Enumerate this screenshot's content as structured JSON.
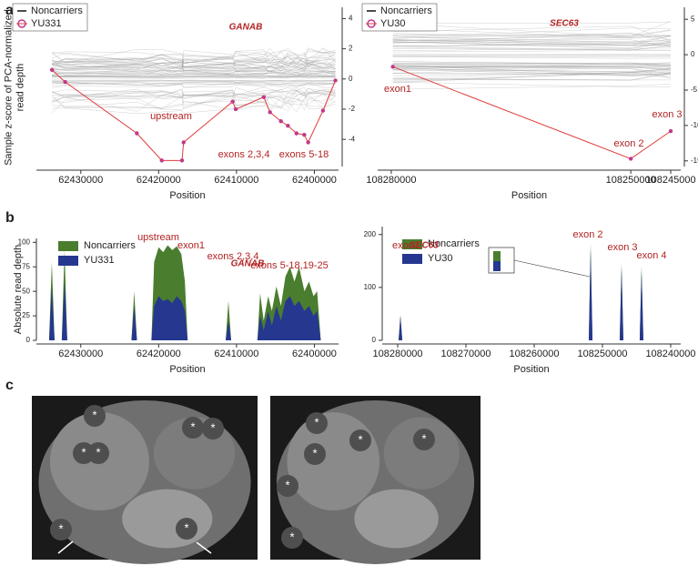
{
  "panel_labels": [
    "a",
    "b",
    "c"
  ],
  "chart_data": [
    {
      "type": "line",
      "y_label": "Sample z-score of PCA-normalized read depth",
      "x_label": "Position",
      "annotations": [
        "GANAB",
        "upstream",
        "exons 2,3,4",
        "exons 5-18"
      ],
      "legend": "upper left",
      "y_axis_side": "right",
      "xlim": [
        62435700,
        62396900
      ],
      "xticks": [
        62430000,
        62420000,
        62410000,
        62400000
      ],
      "ylim": [
        -5.8,
        4.75
      ],
      "yticks": [
        4,
        2,
        0,
        -2,
        -4
      ],
      "series": [
        {
          "name": "Noncarriers",
          "color": "#9e9e9e"
        },
        {
          "name": "YU331",
          "color": "#c0398a",
          "line_color": "#e03c3c",
          "x": [
            62433700,
            62432000,
            62422800,
            62419600,
            62417000,
            62416800,
            62410500,
            62410100,
            62406500,
            62405700,
            62404300,
            62403400,
            62402300,
            62401300,
            62400800,
            62398900,
            62397300
          ],
          "values": [
            0.6,
            -0.2,
            -3.6,
            -5.4,
            -5.4,
            -4.2,
            -1.5,
            -2.0,
            -1.2,
            -2.2,
            -2.8,
            -3.1,
            -3.6,
            -3.7,
            -4.2,
            -2.1,
            -0.1
          ]
        }
      ]
    },
    {
      "type": "line",
      "x_label": "Position",
      "annotations": [
        "SEC63",
        "exon1",
        "exon 2",
        "exon 3"
      ],
      "legend": "upper left",
      "y_axis_side": "right",
      "xlim": [
        108281700,
        108243750
      ],
      "xticks": [
        108280000,
        108250000,
        108245000
      ],
      "ylim": [
        -15.8,
        6.7
      ],
      "yticks": [
        5,
        0,
        -5,
        -10,
        -15
      ],
      "series": [
        {
          "name": "Noncarriers",
          "color": "#9e9e9e"
        },
        {
          "name": "YU30",
          "color": "#c0398a",
          "line_color": "#e03c3c",
          "x": [
            108279800,
            108250000,
            108245000
          ],
          "values": [
            -1.7,
            -14.7,
            -10.8
          ]
        }
      ]
    },
    {
      "type": "area",
      "y_label": "Absolute read depth",
      "x_label": "Position",
      "annotations": [
        "GANAB",
        "upstream",
        "exon1",
        "exons 2,3,4",
        "exons 5-18,19-25"
      ],
      "legend": "upper left",
      "y_axis_side": "left",
      "xlim": [
        62435700,
        62396900
      ],
      "xticks": [
        62430000,
        62420000,
        62410000,
        62400000
      ],
      "ylim": [
        0,
        104
      ],
      "yticks": [
        0,
        25,
        50,
        75,
        100
      ],
      "x": [
        62434070,
        62433720,
        62433370,
        62432440,
        62432090,
        62431740,
        62423490,
        62423140,
        62422790,
        62420930,
        62420580,
        62420000,
        62419420,
        62418840,
        62418250,
        62417670,
        62417090,
        62416630,
        62416280,
        62411390,
        62411040,
        62410690,
        62407320,
        62406970,
        62406510,
        62405930,
        62405460,
        62404880,
        62404300,
        62403720,
        62403140,
        62402560,
        62401970,
        62401280,
        62400690,
        62400110,
        62399650,
        62399180
      ],
      "series": [
        {
          "name": "Noncarriers",
          "color": "#4a7d2e",
          "values": [
            0,
            80,
            0,
            0,
            92,
            0,
            0,
            50,
            0,
            0,
            80,
            95,
            90,
            97,
            92,
            96,
            88,
            60,
            0,
            0,
            40,
            0,
            0,
            48,
            20,
            45,
            30,
            55,
            35,
            65,
            75,
            60,
            75,
            50,
            60,
            45,
            50,
            0
          ]
        },
        {
          "name": "YU331",
          "color": "#26378f",
          "values": [
            0,
            55,
            0,
            0,
            60,
            0,
            0,
            35,
            0,
            0,
            35,
            45,
            40,
            42,
            38,
            45,
            40,
            30,
            0,
            0,
            20,
            0,
            0,
            25,
            10,
            30,
            15,
            35,
            20,
            40,
            45,
            35,
            40,
            30,
            35,
            25,
            30,
            0
          ]
        }
      ]
    },
    {
      "type": "area",
      "x_label": "Position",
      "annotations": [
        "SEC63",
        "exon1",
        "exon 2",
        "exon 3",
        "exon 4"
      ],
      "legend": "upper left",
      "y_axis_side": "left",
      "xlim": [
        108282270,
        108238530
      ],
      "xticks": [
        108280000,
        108270000,
        108260000,
        108250000,
        108240000
      ],
      "ylim": [
        0,
        215
      ],
      "yticks": [
        0,
        100,
        200
      ],
      "x": [
        108279870,
        108279600,
        108279330,
        108252000,
        108251730,
        108251460,
        108247470,
        108247200,
        108246930,
        108244540,
        108244270,
        108244000
      ],
      "series": [
        {
          "name": "Noncarriers",
          "color": "#4a7d2e",
          "values": [
            0,
            48,
            0,
            0,
            183,
            0,
            0,
            145,
            0,
            0,
            140,
            0
          ]
        },
        {
          "name": "YU30",
          "color": "#26378f",
          "values": [
            0,
            45,
            0,
            0,
            170,
            0,
            0,
            135,
            0,
            0,
            130,
            0
          ]
        }
      ]
    }
  ],
  "ct_images": [
    {
      "marks": [
        "*",
        "*",
        "*",
        "*",
        "*",
        "*",
        "*"
      ]
    },
    {
      "marks": [
        "*",
        "*",
        "*",
        "*",
        "*",
        "*"
      ]
    }
  ]
}
